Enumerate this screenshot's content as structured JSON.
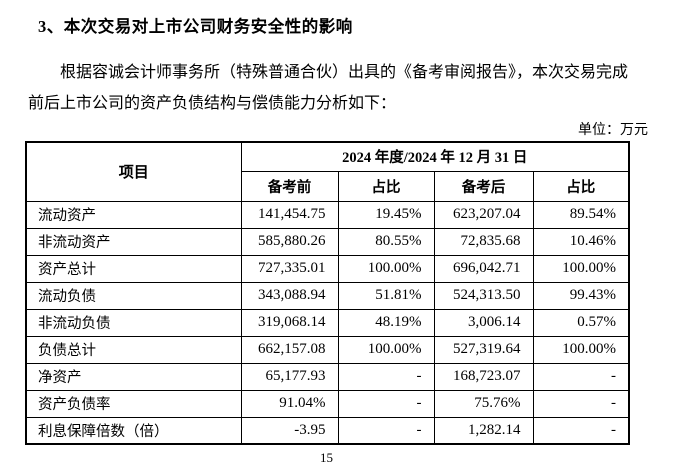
{
  "page": {
    "heading": "3、本次交易对上市公司财务安全性的影响",
    "paragraph_line1": "根据容诚会计师事务所（特殊普通合伙）出具的《备考审阅报告》，本次交易完成",
    "paragraph_line2": "前后上市公司的资产负债结构与偿债能力分析如下：",
    "unit_label": "单位：万元",
    "page_number": "15"
  },
  "table": {
    "header": {
      "item_label": "项目",
      "period_label": "2024 年度/2024 年 12 月 31 日",
      "sub_headers": [
        "备考前",
        "占比",
        "备考后",
        "占比"
      ]
    },
    "rows": [
      {
        "label": "流动资产",
        "pre": "141,454.75",
        "pre_pct": "19.45%",
        "post": "623,207.04",
        "post_pct": "89.54%"
      },
      {
        "label": "非流动资产",
        "pre": "585,880.26",
        "pre_pct": "80.55%",
        "post": "72,835.68",
        "post_pct": "10.46%"
      },
      {
        "label": "资产总计",
        "pre": "727,335.01",
        "pre_pct": "100.00%",
        "post": "696,042.71",
        "post_pct": "100.00%"
      },
      {
        "label": "流动负债",
        "pre": "343,088.94",
        "pre_pct": "51.81%",
        "post": "524,313.50",
        "post_pct": "99.43%"
      },
      {
        "label": "非流动负债",
        "pre": "319,068.14",
        "pre_pct": "48.19%",
        "post": "3,006.14",
        "post_pct": "0.57%"
      },
      {
        "label": "负债总计",
        "pre": "662,157.08",
        "pre_pct": "100.00%",
        "post": "527,319.64",
        "post_pct": "100.00%"
      },
      {
        "label": "净资产",
        "pre": "65,177.93",
        "pre_pct": "-",
        "post": "168,723.07",
        "post_pct": "-"
      },
      {
        "label": "资产负债率",
        "pre": "91.04%",
        "pre_pct": "-",
        "post": "75.76%",
        "post_pct": "-"
      },
      {
        "label": "利息保障倍数（倍）",
        "pre": "-3.95",
        "pre_pct": "-",
        "post": "1,282.14",
        "post_pct": "-"
      }
    ]
  },
  "colors": {
    "text": "#000000",
    "border": "#000000",
    "background": "#ffffff"
  }
}
